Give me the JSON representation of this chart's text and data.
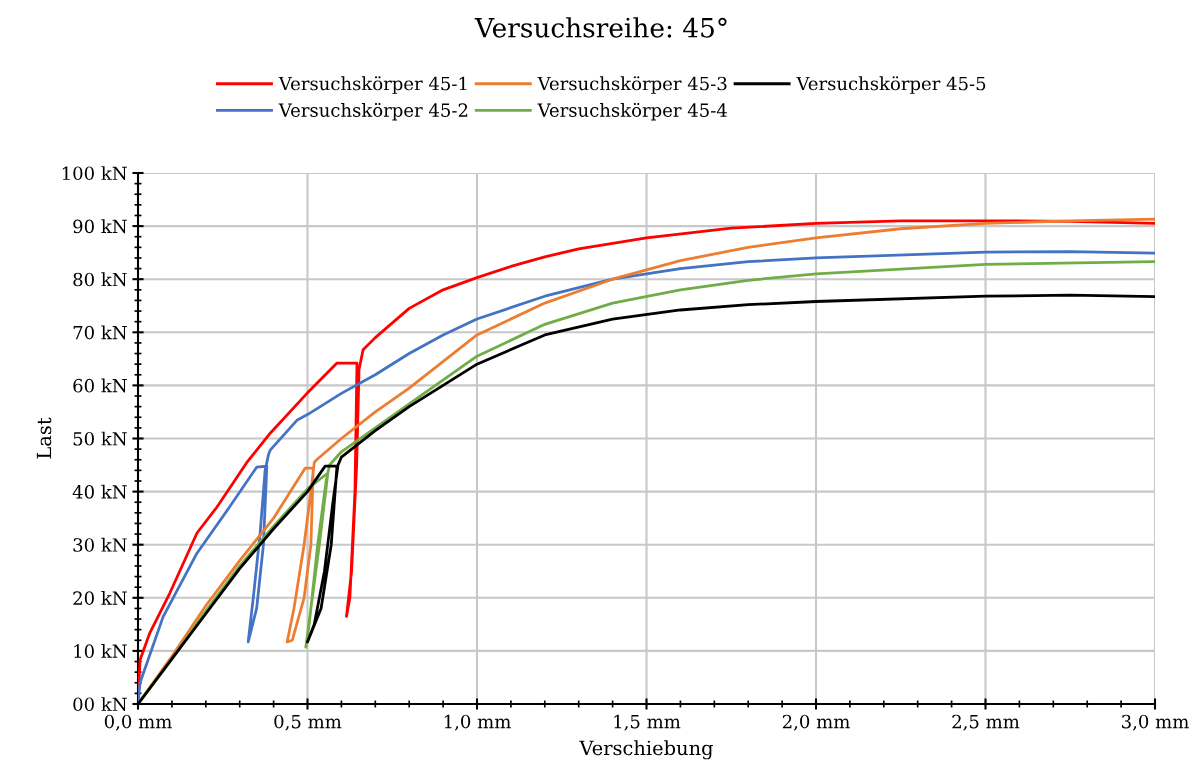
{
  "chart_data": {
    "type": "line",
    "title": "Versuchsreihe: 45°",
    "xlabel": "Verschiebung",
    "ylabel": "Last",
    "legend": "top",
    "grid": true,
    "marker": "none",
    "line_style": "solid",
    "xlim": [
      0,
      3
    ],
    "ylim": [
      0,
      100
    ],
    "xticks": [
      {
        "value": 0,
        "label": "0,0 mm"
      },
      {
        "value": 0.1,
        "label": null
      },
      {
        "value": 0.2,
        "label": null
      },
      {
        "value": 0.3,
        "label": null
      },
      {
        "value": 0.4,
        "label": null
      },
      {
        "value": 0.5,
        "label": "0,5 mm"
      },
      {
        "value": 0.6,
        "label": null
      },
      {
        "value": 0.7,
        "label": null
      },
      {
        "value": 0.8,
        "label": null
      },
      {
        "value": 0.9,
        "label": null
      },
      {
        "value": 1,
        "label": "1,0 mm"
      },
      {
        "value": 1.1,
        "label": null
      },
      {
        "value": 1.2,
        "label": null
      },
      {
        "value": 1.3,
        "label": null
      },
      {
        "value": 1.4,
        "label": null
      },
      {
        "value": 1.5,
        "label": "1,5 mm"
      },
      {
        "value": 1.6,
        "label": null
      },
      {
        "value": 1.7,
        "label": null
      },
      {
        "value": 1.8,
        "label": null
      },
      {
        "value": 1.9,
        "label": null
      },
      {
        "value": 2,
        "label": "2,0 mm"
      },
      {
        "value": 2.1,
        "label": null
      },
      {
        "value": 2.2,
        "label": null
      },
      {
        "value": 2.3,
        "label": null
      },
      {
        "value": 2.4,
        "label": null
      },
      {
        "value": 2.5,
        "label": "2,5 mm"
      },
      {
        "value": 2.6,
        "label": null
      },
      {
        "value": 2.7,
        "label": null
      },
      {
        "value": 2.8,
        "label": null
      },
      {
        "value": 2.9,
        "label": null
      },
      {
        "value": 3,
        "label": "3,0 mm"
      }
    ],
    "yticks": [
      {
        "value": 0,
        "label": "00 kN"
      },
      {
        "value": 2,
        "label": null
      },
      {
        "value": 4,
        "label": null
      },
      {
        "value": 6,
        "label": null
      },
      {
        "value": 8,
        "label": null
      },
      {
        "value": 10,
        "label": "10 kN"
      },
      {
        "value": 12,
        "label": null
      },
      {
        "value": 14,
        "label": null
      },
      {
        "value": 16,
        "label": null
      },
      {
        "value": 18,
        "label": null
      },
      {
        "value": 20,
        "label": "20 kN"
      },
      {
        "value": 22,
        "label": null
      },
      {
        "value": 24,
        "label": null
      },
      {
        "value": 26,
        "label": null
      },
      {
        "value": 28,
        "label": null
      },
      {
        "value": 30,
        "label": "30 kN"
      },
      {
        "value": 32,
        "label": null
      },
      {
        "value": 34,
        "label": null
      },
      {
        "value": 36,
        "label": null
      },
      {
        "value": 38,
        "label": null
      },
      {
        "value": 40,
        "label": "40 kN"
      },
      {
        "value": 42,
        "label": null
      },
      {
        "value": 44,
        "label": null
      },
      {
        "value": 46,
        "label": null
      },
      {
        "value": 48,
        "label": null
      },
      {
        "value": 50,
        "label": "50 kN"
      },
      {
        "value": 52,
        "label": null
      },
      {
        "value": 54,
        "label": null
      },
      {
        "value": 56,
        "label": null
      },
      {
        "value": 58,
        "label": null
      },
      {
        "value": 60,
        "label": "60 kN"
      },
      {
        "value": 62,
        "label": null
      },
      {
        "value": 64,
        "label": null
      },
      {
        "value": 66,
        "label": null
      },
      {
        "value": 68,
        "label": null
      },
      {
        "value": 70,
        "label": "70 kN"
      },
      {
        "value": 72,
        "label": null
      },
      {
        "value": 74,
        "label": null
      },
      {
        "value": 76,
        "label": null
      },
      {
        "value": 78,
        "label": null
      },
      {
        "value": 80,
        "label": "80 kN"
      },
      {
        "value": 82,
        "label": null
      },
      {
        "value": 84,
        "label": null
      },
      {
        "value": 86,
        "label": null
      },
      {
        "value": 88,
        "label": null
      },
      {
        "value": 90,
        "label": "90 kN"
      },
      {
        "value": 92,
        "label": null
      },
      {
        "value": 94,
        "label": null
      },
      {
        "value": 96,
        "label": null
      },
      {
        "value": 98,
        "label": null
      },
      {
        "value": 100,
        "label": "100 kN"
      }
    ],
    "series": [
      {
        "name": "Versuchskörper 45-1",
        "color": "#ff0000",
        "x": [
          0,
          0.006,
          0.035,
          0.094,
          0.174,
          0.233,
          0.32,
          0.39,
          0.5,
          0.587,
          0.646,
          0.64,
          0.625,
          0.615,
          0.63,
          0.645,
          0.652,
          0.664,
          0.7,
          0.8,
          0.9,
          1.0,
          1.1,
          1.2,
          1.3,
          1.5,
          1.75,
          2.0,
          2.25,
          2.5,
          2.75,
          3.0
        ],
        "values": [
          0,
          8.3,
          13.4,
          20.9,
          32.2,
          37.1,
          45.4,
          51,
          58.6,
          64.2,
          64.2,
          40,
          20,
          16.5,
          25,
          45,
          63,
          66.7,
          69,
          74.5,
          78,
          80.3,
          82.4,
          84.2,
          85.7,
          87.8,
          89.6,
          90.5,
          91,
          91,
          90.9,
          90.5
        ]
      },
      {
        "name": "Versuchskörper 45-2",
        "color": "#4472c4",
        "x": [
          0,
          0.006,
          0.074,
          0.174,
          0.27,
          0.35,
          0.38,
          0.37,
          0.35,
          0.325,
          0.34,
          0.36,
          0.375,
          0.385,
          0.39,
          0.47,
          0.5,
          0.6,
          0.7,
          0.8,
          0.9,
          1.0,
          1.2,
          1.4,
          1.6,
          1.8,
          2.0,
          2.5,
          2.75,
          3.0
        ],
        "values": [
          0,
          4,
          16.4,
          28.4,
          37.1,
          44.6,
          44.8,
          30,
          18,
          11.7,
          20,
          32,
          44,
          47,
          47.8,
          53.5,
          54.5,
          58.5,
          62,
          66,
          69.5,
          72.5,
          76.8,
          80,
          82,
          83.3,
          84,
          85.1,
          85.2,
          84.9
        ]
      },
      {
        "name": "Versuchskörper 45-3",
        "color": "#ed7d31",
        "x": [
          0,
          0.1,
          0.2,
          0.3,
          0.4,
          0.493,
          0.517,
          0.51,
          0.49,
          0.455,
          0.44,
          0.46,
          0.49,
          0.51,
          0.52,
          0.527,
          0.6,
          0.7,
          0.8,
          1.0,
          1.2,
          1.4,
          1.6,
          1.8,
          2.0,
          2.25,
          2.5,
          2.75,
          3.0
        ],
        "values": [
          0,
          9,
          18.5,
          27,
          35,
          44.4,
          44.4,
          30,
          20,
          12,
          11.7,
          18,
          30,
          40,
          45.5,
          46,
          50,
          55,
          59.5,
          69.5,
          75.5,
          80,
          83.5,
          86,
          87.8,
          89.5,
          90.5,
          91,
          91.3
        ]
      },
      {
        "name": "Versuchskörper 45-4",
        "color": "#70ad47",
        "x": [
          0,
          0.1,
          0.2,
          0.3,
          0.4,
          0.5,
          0.56,
          0.535,
          0.51,
          0.495,
          0.505,
          0.53,
          0.555,
          0.565,
          0.6,
          0.7,
          0.8,
          1.0,
          1.2,
          1.4,
          1.6,
          1.8,
          2.0,
          2.5,
          3.0
        ],
        "values": [
          0,
          8.5,
          17.5,
          26,
          33.5,
          40.5,
          43.5,
          30,
          18,
          10.7,
          15,
          30,
          42,
          45,
          47.5,
          52,
          56.5,
          65.5,
          71.5,
          75.5,
          78,
          79.8,
          81,
          82.8,
          83.3
        ]
      },
      {
        "name": "Versuchskörper 45-5",
        "color": "#000000",
        "x": [
          0,
          0.1,
          0.2,
          0.3,
          0.4,
          0.5,
          0.552,
          0.587,
          0.57,
          0.54,
          0.5,
          0.52,
          0.55,
          0.575,
          0.59,
          0.6,
          0.7,
          0.8,
          1.0,
          1.2,
          1.4,
          1.6,
          1.8,
          2.0,
          2.5,
          2.75,
          3.0
        ],
        "values": [
          0,
          8.5,
          17,
          25.5,
          33,
          40,
          44.8,
          44.8,
          30,
          18,
          11.7,
          15,
          25,
          38,
          45,
          46.5,
          51.5,
          56,
          64,
          69.5,
          72.5,
          74.2,
          75.2,
          75.8,
          76.8,
          77,
          76.7
        ]
      }
    ]
  }
}
